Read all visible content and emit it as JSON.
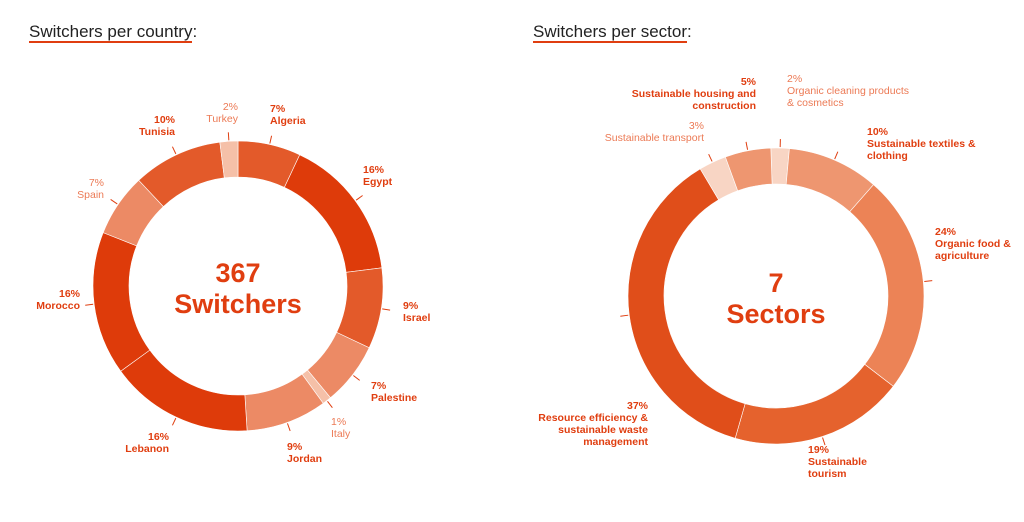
{
  "chart_data": [
    {
      "type": "pie",
      "title": "Switchers per country",
      "title_suffix": ":",
      "center_value": "367",
      "center_label": "Switchers",
      "slices": [
        {
          "label": "Algeria",
          "value": 7,
          "text": "7%",
          "color": "#e35a2a"
        },
        {
          "label": "Egypt",
          "value": 16,
          "text": "16%",
          "color": "#de3b0a"
        },
        {
          "label": "Israel",
          "value": 9,
          "text": "9%",
          "color": "#e35a2a"
        },
        {
          "label": "Palestine",
          "value": 7,
          "text": "7%",
          "color": "#ec8a65"
        },
        {
          "label": "Italy",
          "value": 1,
          "text": "1%",
          "color": "#f5c0a8"
        },
        {
          "label": "Jordan",
          "value": 9,
          "text": "9%",
          "color": "#ec8a65"
        },
        {
          "label": "Lebanon",
          "value": 16,
          "text": "16%",
          "color": "#de3b0a"
        },
        {
          "label": "Morocco",
          "value": 16,
          "text": "16%",
          "color": "#de3b0a"
        },
        {
          "label": "Spain",
          "value": 7,
          "text": "7%",
          "color": "#ec8a65"
        },
        {
          "label": "Tunisia",
          "value": 10,
          "text": "10%",
          "color": "#e35a2a"
        },
        {
          "label": "Turkey",
          "value": 2,
          "text": "2%",
          "color": "#f5c0a8"
        }
      ]
    },
    {
      "type": "pie",
      "title": "Switchers per sector",
      "title_suffix": ":",
      "center_value": "7",
      "center_label": "Sectors",
      "slices": [
        {
          "label": "Organic cleaning products & cosmetics",
          "value": 2,
          "text": "2%",
          "color": "#f8d5c4"
        },
        {
          "label": "Sustainable textiles & clothing",
          "value": 10,
          "text": "10%",
          "color": "#ee9670"
        },
        {
          "label": "Organic food & agriculture",
          "value": 24,
          "text": "24%",
          "color": "#ec8356"
        },
        {
          "label": "Sustainable tourism",
          "value": 19,
          "text": "19%",
          "color": "#e5622d"
        },
        {
          "label": "Resource efficiency & sustainable waste management",
          "value": 37,
          "text": "37%",
          "color": "#e04e1a"
        },
        {
          "label": "Sustainable transport",
          "value": 3,
          "text": "3%",
          "color": "#f8d5c4"
        },
        {
          "label": "Sustainable housing and construction",
          "value": 5,
          "text": "5%",
          "color": "#ee9670"
        }
      ]
    }
  ]
}
